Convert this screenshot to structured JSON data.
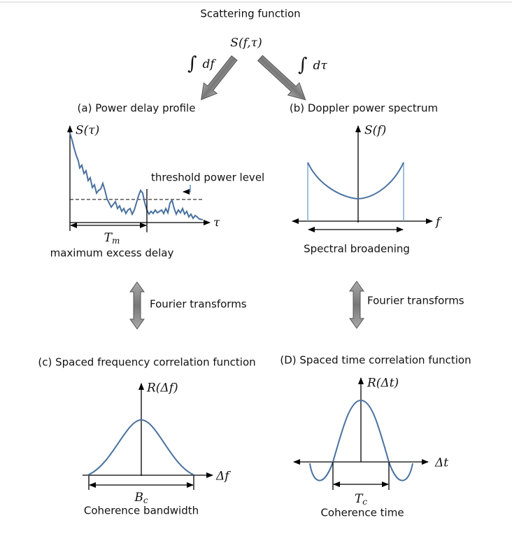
{
  "title": "Scattering function",
  "center": {
    "label": "S(f,τ)",
    "left_integral": {
      "symbol": "∫",
      "variable": "df"
    },
    "right_integral": {
      "symbol": "∫",
      "variable": "dτ"
    }
  },
  "panels": [
    {
      "title": "(a) Power delay profile",
      "y_label": "S(τ)",
      "x_label": "τ",
      "annotation": "threshold power level",
      "width_symbol": "T",
      "width_subscript": "m",
      "width_label": "maximum excess delay"
    },
    {
      "title": "(b) Doppler power spectrum",
      "y_label": "S(f)",
      "x_label": "f",
      "width_label": "Spectral broadening"
    },
    {
      "title": "(c) Spaced frequency correlation function",
      "y_label": "R(Δf)",
      "x_label": "Δf",
      "width_symbol": "B",
      "width_subscript": "c",
      "width_label": "Coherence bandwidth"
    },
    {
      "title": "(D) Spaced time correlation function",
      "y_label": "R(Δt)",
      "x_label": "Δt",
      "width_symbol": "T",
      "width_subscript": "c",
      "width_label": "Coherence time"
    }
  ],
  "transforms": [
    "Fourier transforms",
    "Fourier transforms"
  ]
}
